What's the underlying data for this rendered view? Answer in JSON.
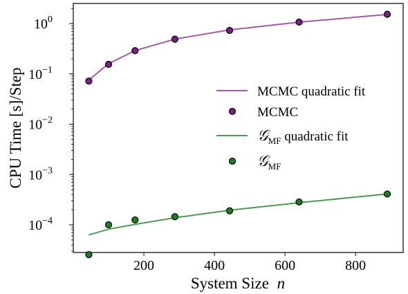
{
  "chart_data": {
    "type": "line",
    "xlabel": "System Size",
    "xlabel_var": "n",
    "ylabel": "CPU Time [s]/Step",
    "xlim": [
      0,
      935
    ],
    "ylim_log10": [
      -4.55,
      0.4
    ],
    "y_scale": "log",
    "x_ticks": [
      200,
      400,
      600,
      800
    ],
    "y_tick_exponents": [
      -4,
      -3,
      -2,
      -1,
      0
    ],
    "grid": false,
    "legend_position": "right",
    "series": [
      {
        "name": "MCMC quadratic fit",
        "kind": "line",
        "color": "#a05aa6",
        "x": [
          44,
          100,
          175,
          288,
          443,
          640,
          890
        ],
        "y": [
          0.075,
          0.16,
          0.29,
          0.49,
          0.75,
          1.07,
          1.52
        ]
      },
      {
        "name": "MCMC",
        "kind": "scatter",
        "color": "#7b1f83",
        "x": [
          44,
          100,
          175,
          288,
          443,
          640,
          890
        ],
        "y": [
          0.072,
          0.155,
          0.29,
          0.49,
          0.73,
          1.07,
          1.53
        ]
      },
      {
        "name": "G_MF quadratic fit",
        "kind": "line",
        "color": "#4f9a52",
        "x": [
          44,
          100,
          175,
          288,
          443,
          640,
          890
        ],
        "y": [
          6.3e-05,
          8.2e-05,
          0.000102,
          0.000138,
          0.000195,
          0.000275,
          0.00041
        ]
      },
      {
        "name": "G_MF",
        "kind": "scatter",
        "color": "#1e7d22",
        "x": [
          44,
          100,
          175,
          288,
          443,
          640,
          890
        ],
        "y": [
          2.55e-05,
          0.0001,
          0.000125,
          0.000145,
          0.00019,
          0.000285,
          0.00041
        ]
      }
    ],
    "legend": [
      {
        "label": "MCMC quadratic fit",
        "type": "line",
        "color": "#a05aa6"
      },
      {
        "label": "MCMC",
        "type": "marker",
        "color": "#7b1f83"
      },
      {
        "label": "G_MF quadratic fit",
        "type": "line",
        "color": "#4f9a52",
        "math": "calG_MF"
      },
      {
        "label": "G_MF",
        "type": "marker",
        "color": "#1e7d22",
        "math": "calG_MF"
      }
    ]
  }
}
